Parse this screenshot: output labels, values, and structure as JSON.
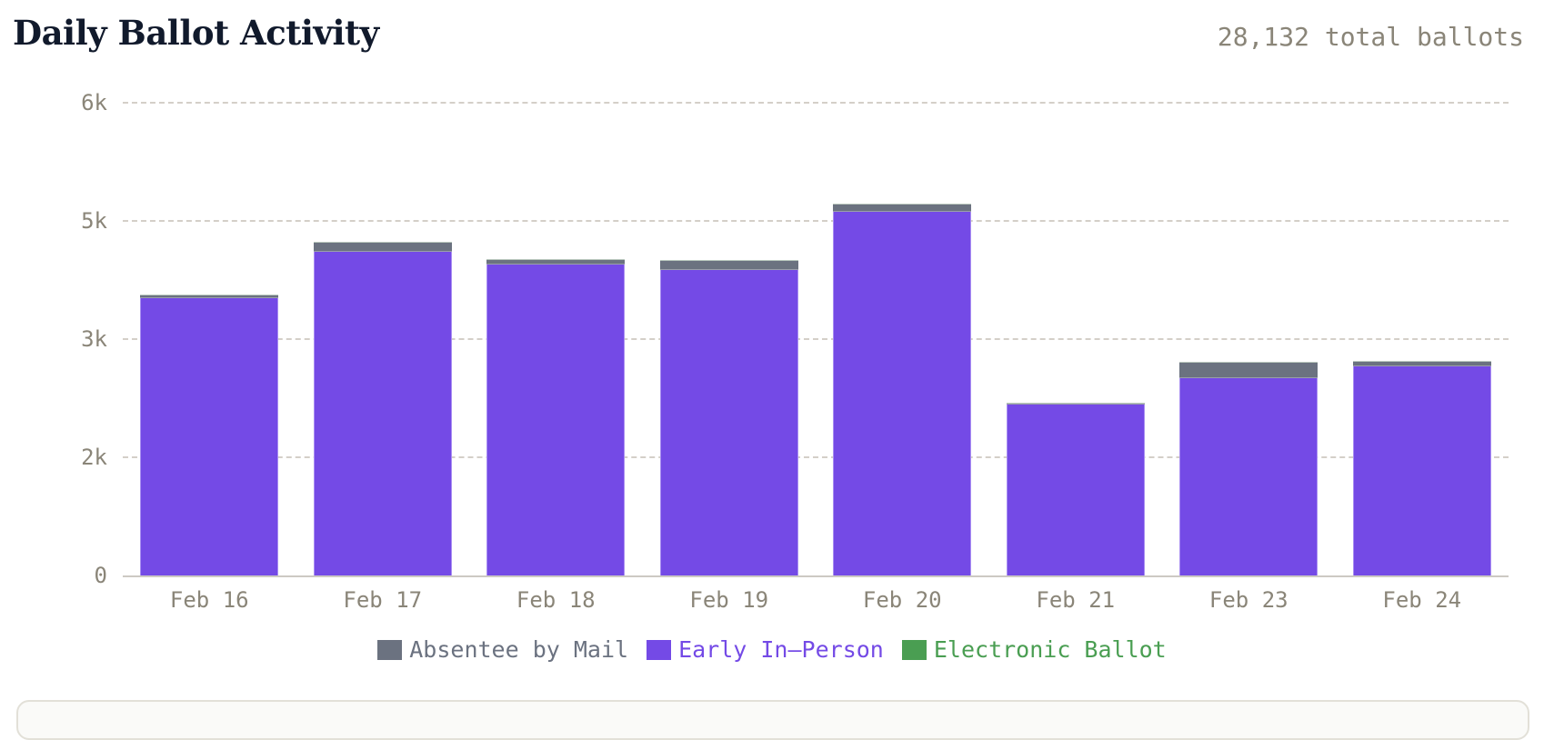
{
  "header": {
    "title": "Daily Ballot Activity",
    "total_label": "28,132 total ballots"
  },
  "colors": {
    "absentee": "#6b7280",
    "early": "#744ae6",
    "electronic": "#4a9e52",
    "grid": "#d4cfc8",
    "tick_text": "#8a8578",
    "title": "#111a2c"
  },
  "chart_data": {
    "type": "bar",
    "stacked": true,
    "title": "Daily Ballot Activity",
    "subtitle": "28,132 total ballots",
    "xlabel": "",
    "ylabel": "",
    "categories": [
      "Feb 16",
      "Feb 17",
      "Feb 18",
      "Feb 19",
      "Feb 20",
      "Feb 21",
      "Feb 23",
      "Feb 24"
    ],
    "series": [
      {
        "name": "Early In-Person",
        "color": "#744ae6",
        "values": [
          3521,
          4111,
          3945,
          3876,
          4620,
          2165,
          2508,
          2656
        ]
      },
      {
        "name": "Absentee by Mail",
        "color": "#6b7280",
        "values": [
          46,
          120,
          68,
          126,
          103,
          5,
          200,
          63
        ]
      },
      {
        "name": "Electronic Ballot",
        "color": "#4a9e52",
        "values": [
          0,
          0,
          0,
          0,
          0,
          0,
          0,
          0
        ]
      }
    ],
    "totals": [
      3567,
      4231,
      4013,
      4002,
      4723,
      2170,
      2708,
      2719
    ],
    "ylim": [
      0,
      6000
    ],
    "yticks": [
      0,
      1500,
      3000,
      4500,
      6000
    ],
    "ytick_labels": [
      "0",
      "2k",
      "3k",
      "5k",
      "6k"
    ],
    "grid": true,
    "legend_position": "bottom"
  },
  "legend": [
    {
      "label": "Absentee by Mail",
      "key": "absentee"
    },
    {
      "label": "Early In–Person",
      "key": "early"
    },
    {
      "label": "Electronic Ballot",
      "key": "electronic"
    }
  ]
}
